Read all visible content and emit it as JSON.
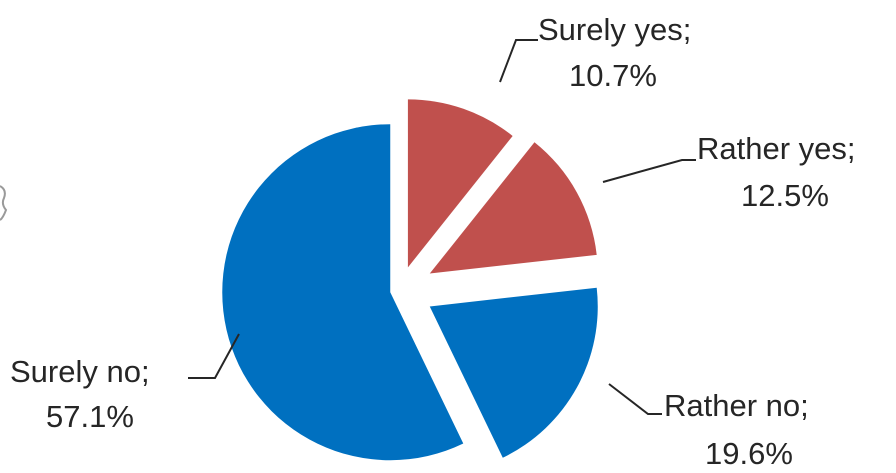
{
  "chart_data": {
    "type": "pie",
    "title": "",
    "legend": "none",
    "slices": [
      {
        "label": "Surely yes;",
        "value": 10.7,
        "value_label": "10.7%",
        "color": "#C0504D",
        "exploded": true
      },
      {
        "label": "Rather yes;",
        "value": 12.5,
        "value_label": "12.5%",
        "color": "#C0504D",
        "exploded": true
      },
      {
        "label": "Rather no;",
        "value": 19.6,
        "value_label": "19.6%",
        "color": "#0070C0",
        "exploded": true
      },
      {
        "label": "Surely no;",
        "value": 57.1,
        "value_label": "57.1%",
        "color": "#0070C0",
        "exploded": true
      }
    ]
  }
}
